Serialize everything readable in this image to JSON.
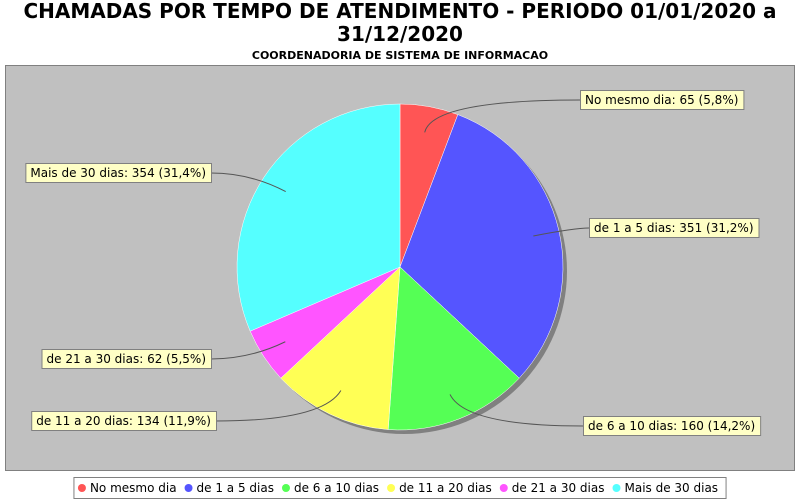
{
  "chart_data": {
    "type": "pie",
    "title": "CHAMADAS POR TEMPO DE ATENDIMENTO - PERIODO 01/01/2020 a 31/12/2020",
    "subtitle": "COORDENADORIA DE SISTEMA DE INFORMACAO",
    "categories": [
      "No mesmo dia",
      "de 1 a 5 dias",
      "de 6 a 10 dias",
      "de 11 a 20 dias",
      "de 21 a 30 dias",
      "Mais de 30 dias"
    ],
    "values": [
      65,
      351,
      160,
      134,
      62,
      354
    ],
    "value_labels": [
      "No mesmo dia: 65 (5,8%)",
      "de 1 a 5 dias: 351 (31,2%)",
      "de 6 a 10 dias: 160 (14,2%)",
      "de 11 a 20 dias: 134 (11,9%)",
      "de 21 a 30 dias: 62 (5,5%)",
      "Mais de 30 dias: 354 (31,4%)"
    ],
    "colors": [
      "#ff5555",
      "#5555ff",
      "#55ff55",
      "#ffff55",
      "#ff55ff",
      "#55ffff"
    ]
  }
}
